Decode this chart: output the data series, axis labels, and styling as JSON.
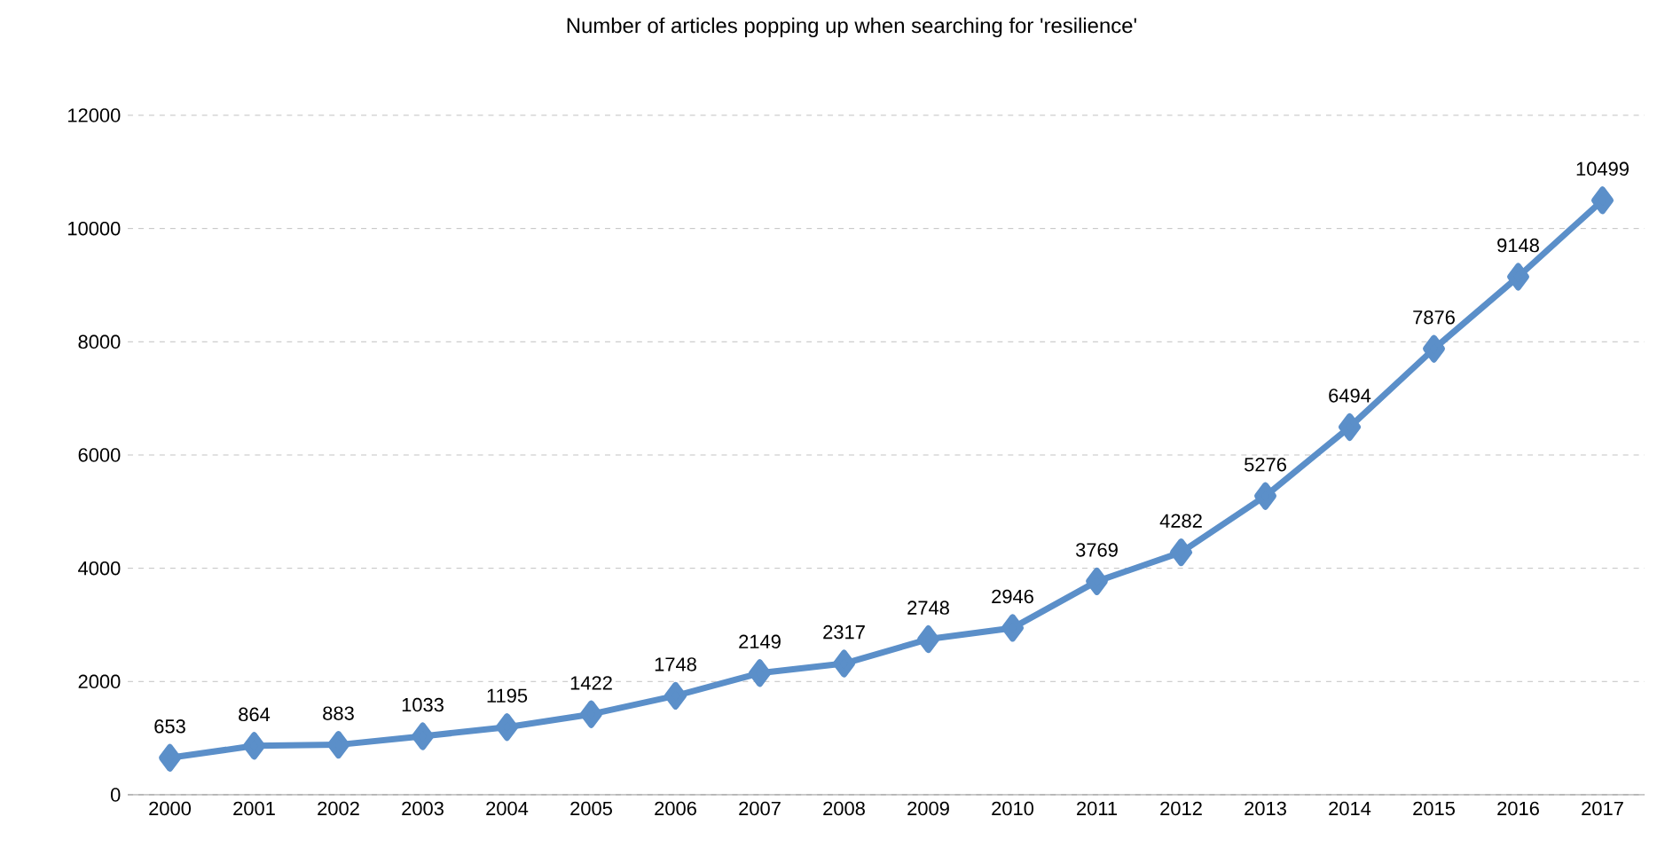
{
  "chart_data": {
    "type": "line",
    "title": "Number of articles popping up when searching for 'resilience'",
    "categories": [
      "2000",
      "2001",
      "2002",
      "2003",
      "2004",
      "2005",
      "2006",
      "2007",
      "2008",
      "2009",
      "2010",
      "2011",
      "2012",
      "2013",
      "2014",
      "2015",
      "2016",
      "2017"
    ],
    "values": [
      653,
      864,
      883,
      1033,
      1195,
      1422,
      1748,
      2149,
      2317,
      2748,
      2946,
      3769,
      4282,
      5276,
      6494,
      7876,
      9148,
      10499
    ],
    "color": "#5b8fc9",
    "marker": "diamond",
    "line_style": "solid",
    "ylim": [
      0,
      12000
    ],
    "yticks": [
      0,
      2000,
      4000,
      6000,
      8000,
      10000,
      12000
    ],
    "grid": "y",
    "data_labels": true
  }
}
